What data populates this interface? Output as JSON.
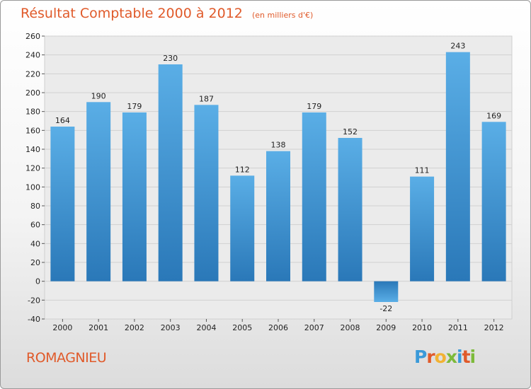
{
  "header": {
    "title": "Résultat Comptable 2000 à 2012",
    "subtitle": "(en milliers d'€)"
  },
  "place": "ROMAGNIEU",
  "logo": {
    "text": "Proxiti",
    "letters": [
      {
        "ch": "P",
        "color": "#3a9ad9"
      },
      {
        "ch": "r",
        "color": "#e05a2a"
      },
      {
        "ch": "o",
        "color": "#f2b233"
      },
      {
        "ch": "x",
        "color": "#7cba3a"
      },
      {
        "ch": "i",
        "color": "#3a9ad9"
      },
      {
        "ch": "t",
        "color": "#e05a2a"
      },
      {
        "ch": "i",
        "color": "#7cba3a"
      }
    ]
  },
  "chart_data": {
    "type": "bar",
    "title": "Résultat Comptable 2000 à 2012",
    "subtitle": "(en milliers d'€)",
    "categories": [
      "2000",
      "2001",
      "2002",
      "2003",
      "2004",
      "2005",
      "2006",
      "2007",
      "2008",
      "2009",
      "2010",
      "2011",
      "2012"
    ],
    "values": [
      164,
      190,
      179,
      230,
      187,
      112,
      138,
      179,
      152,
      -22,
      111,
      243,
      169
    ],
    "ylim": [
      -40,
      260
    ],
    "yticks": [
      -40,
      -20,
      0,
      20,
      40,
      60,
      80,
      100,
      120,
      140,
      160,
      180,
      200,
      220,
      240,
      260
    ],
    "grid": true,
    "colors": {
      "bar_top": "#5aaee6",
      "bar_bottom": "#2a78b8",
      "grid": "#d0d0d0",
      "axis_text": "#222222"
    }
  }
}
